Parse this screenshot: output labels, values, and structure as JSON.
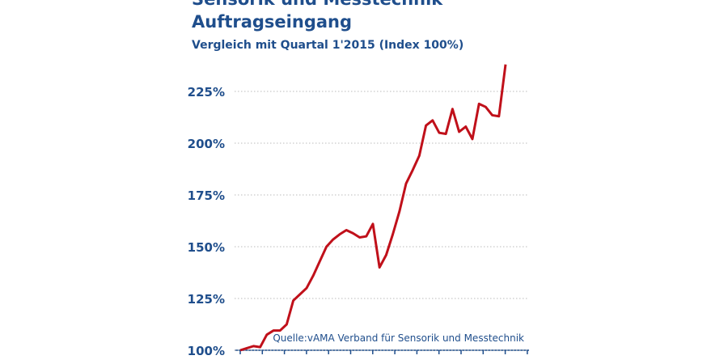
{
  "chart_data": {
    "type": "line",
    "title": [
      "Sensorik und Messtechnik",
      "Auftragseingang"
    ],
    "subtitle": "Vergleich mit Quartal 1'2015 (Index 100%)",
    "annotation": "Quelle:vAMA Verband für Sensorik und Messtechnik",
    "categories": [
      null,
      null,
      null,
      null,
      null,
      null,
      null,
      null,
      null,
      null,
      null,
      null,
      null,
      null,
      null,
      null,
      null,
      null,
      null,
      null,
      null,
      null,
      null,
      null,
      null,
      null,
      null,
      null,
      null,
      null,
      null,
      null,
      null,
      null,
      null,
      null,
      null,
      null,
      null,
      null,
      null
    ],
    "series": [
      {
        "color": "#c0101a",
        "values": [
          100,
          101,
          102,
          101.5,
          107.5,
          109.5,
          109.5,
          112.5,
          124,
          127,
          130,
          136,
          143,
          150,
          153.5,
          156,
          158,
          156.5,
          154.5,
          155,
          161,
          140,
          146,
          156,
          167,
          180.5,
          187,
          194,
          208.5,
          211,
          205,
          204.5,
          216.5,
          205.5,
          208,
          202,
          219,
          217.5,
          213.5,
          213,
          238
        ]
      }
    ],
    "ylim": [
      100,
      225
    ],
    "yticks": [
      {
        "value": 100,
        "label": "100%"
      },
      {
        "value": 125,
        "label": "125%"
      },
      {
        "value": 150,
        "label": "150%"
      },
      {
        "value": 175,
        "label": "175%"
      },
      {
        "value": 200,
        "label": "200%"
      },
      {
        "value": 225,
        "label": "225%"
      }
    ],
    "grid": true
  }
}
